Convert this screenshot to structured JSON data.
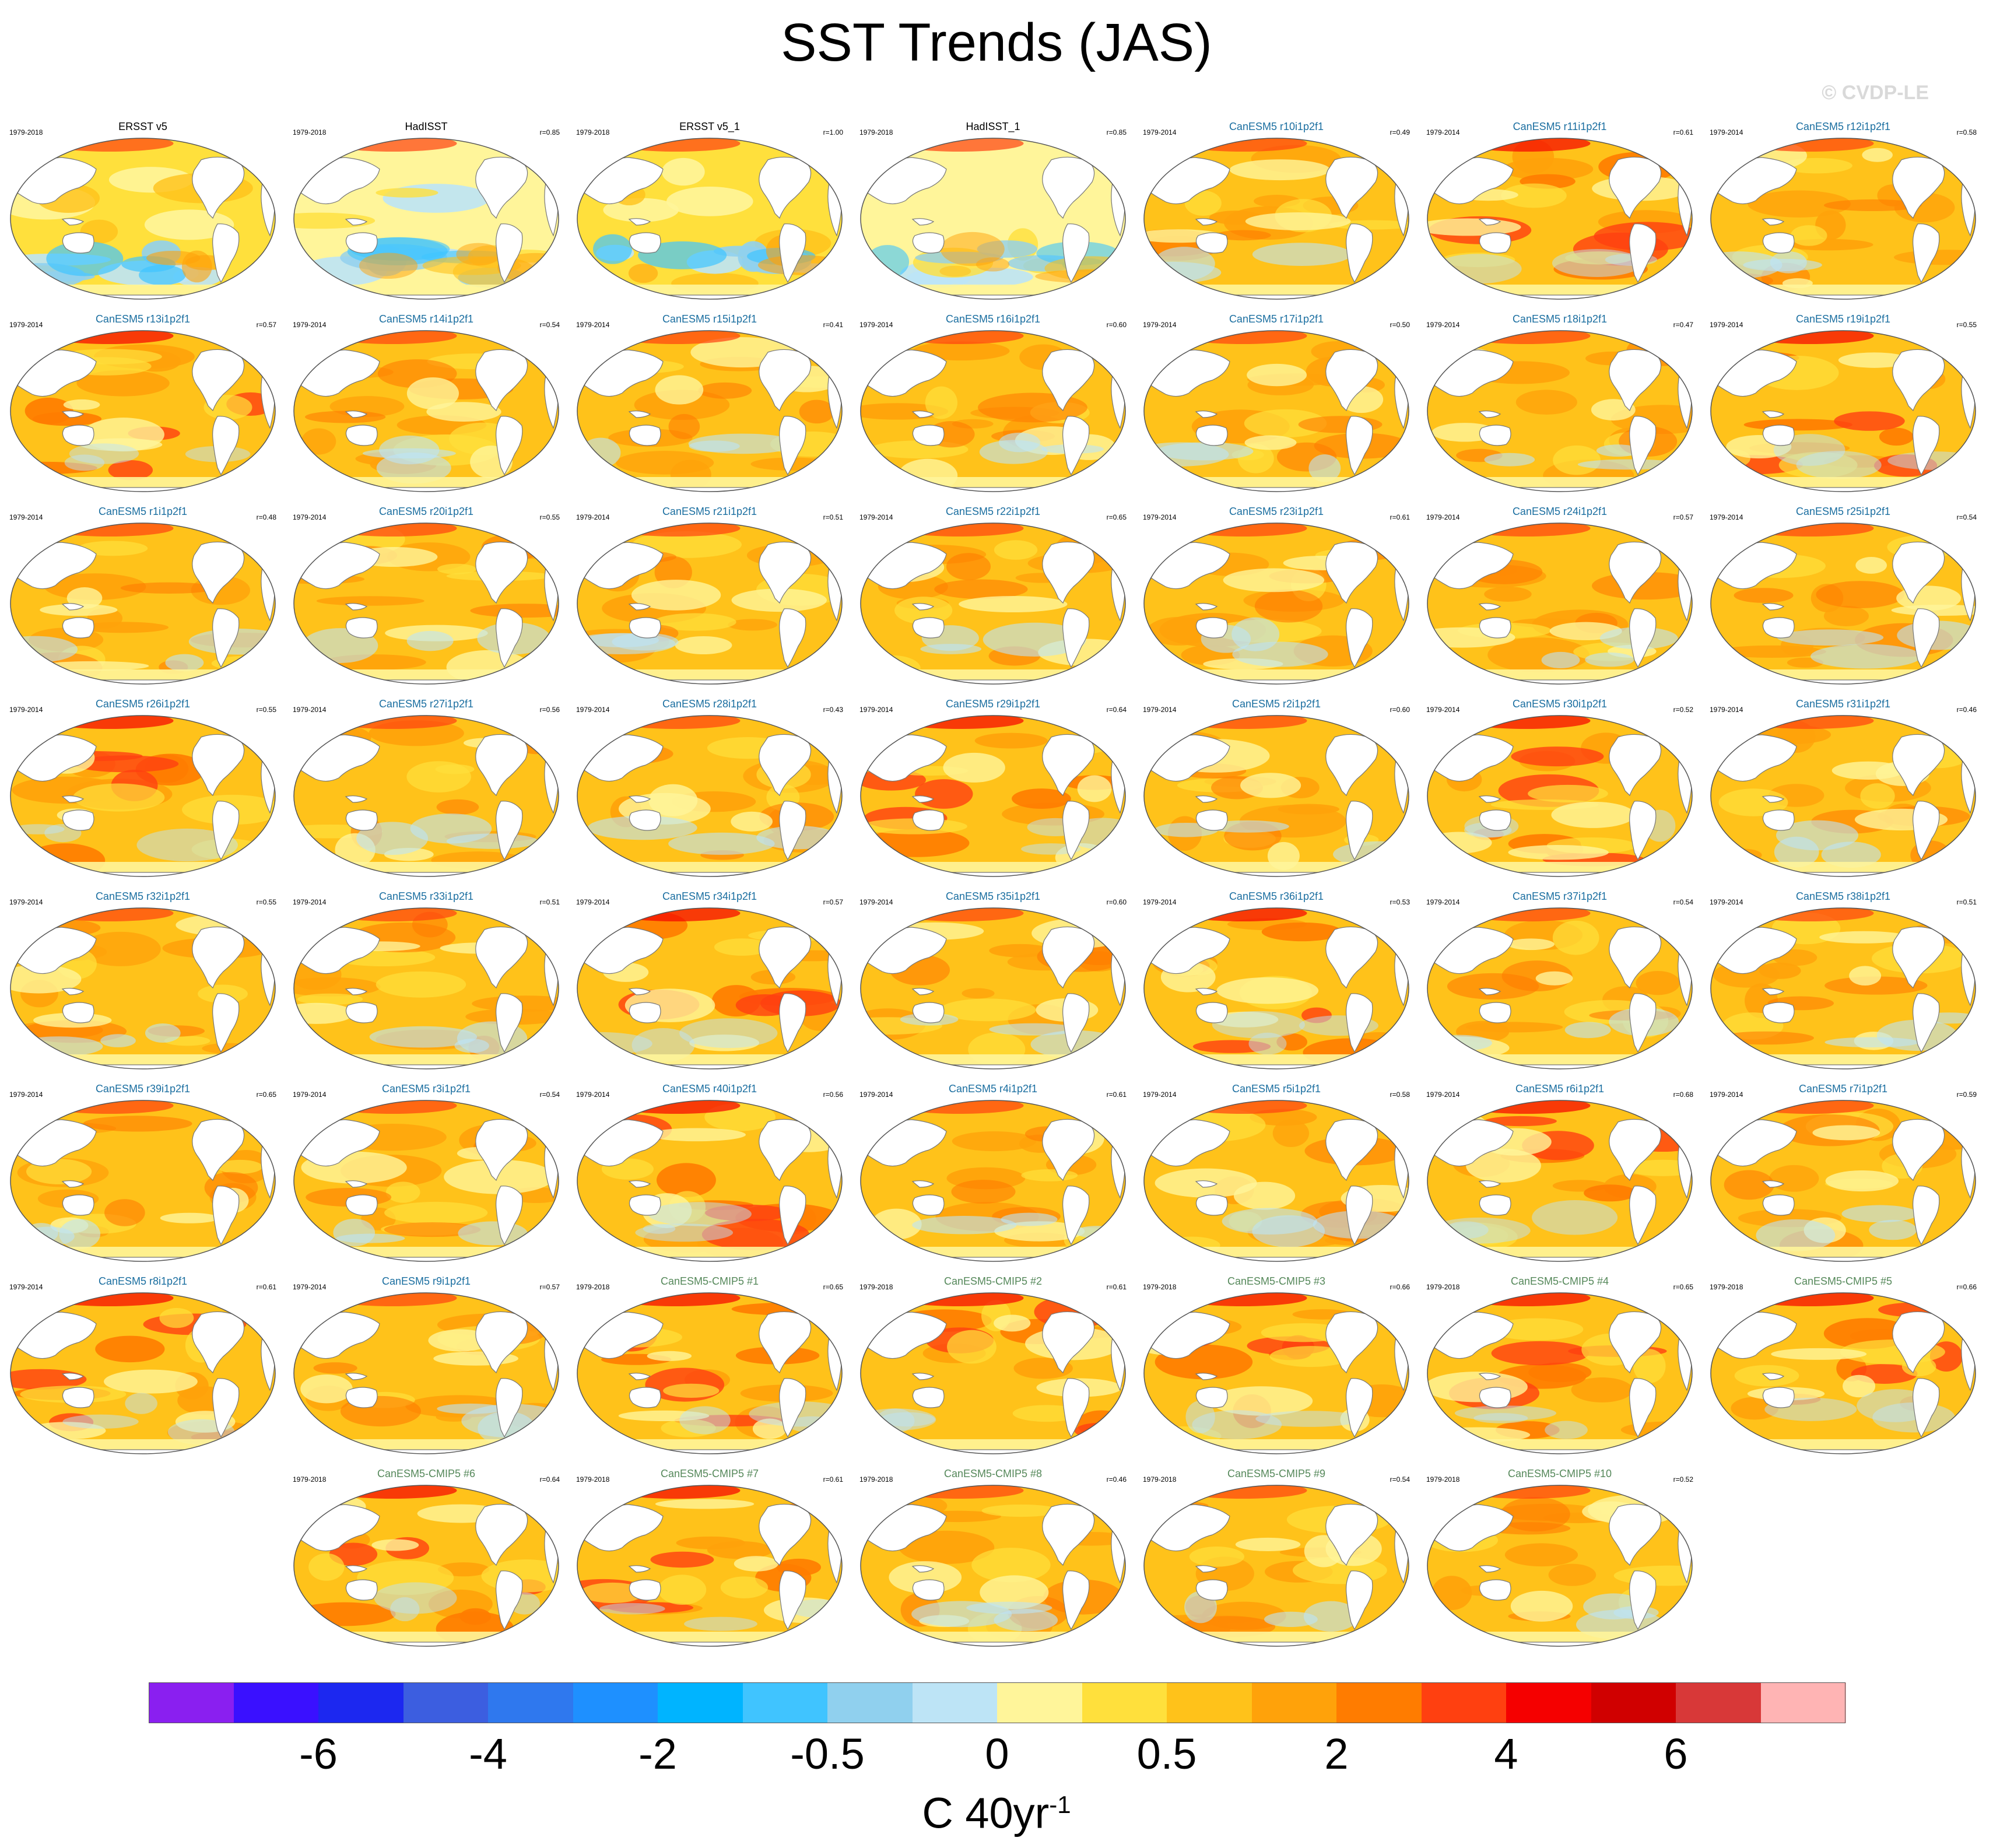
{
  "title": "SST Trends (JAS)",
  "watermark": "© CVDP-LE",
  "colors": {
    "obs_title": "#000000",
    "model_title": "#1a6ea0",
    "cmip5_title": "#55885a",
    "land": "#ffffff",
    "coast": "#666666"
  },
  "panels": [
    {
      "title": "ERSST v5",
      "period": "1979-2018",
      "r": "",
      "kind": "obs",
      "style": "coolobs"
    },
    {
      "title": "HadISST",
      "period": "1979-2018",
      "r": "r=0.85",
      "kind": "obs",
      "style": "coolobs2"
    },
    {
      "title": "ERSST v5_1",
      "period": "1979-2018",
      "r": "r=1.00",
      "kind": "obs",
      "style": "coolobs"
    },
    {
      "title": "HadISST_1",
      "period": "1979-2018",
      "r": "r=0.85",
      "kind": "obs",
      "style": "coolobs2"
    },
    {
      "title": "CanESM5 r10i1p2f1",
      "period": "1979-2014",
      "r": "r=0.49",
      "kind": "model",
      "style": "warm"
    },
    {
      "title": "CanESM5 r11i1p2f1",
      "period": "1979-2014",
      "r": "r=0.61",
      "kind": "model",
      "style": "hot"
    },
    {
      "title": "CanESM5 r12i1p2f1",
      "period": "1979-2014",
      "r": "r=0.58",
      "kind": "model",
      "style": "warm"
    },
    {
      "title": "CanESM5 r13i1p2f1",
      "period": "1979-2014",
      "r": "r=0.57",
      "kind": "model",
      "style": "hot"
    },
    {
      "title": "CanESM5 r14i1p2f1",
      "period": "1979-2014",
      "r": "r=0.54",
      "kind": "model",
      "style": "warm"
    },
    {
      "title": "CanESM5 r15i1p2f1",
      "period": "1979-2014",
      "r": "r=0.41",
      "kind": "model",
      "style": "warm"
    },
    {
      "title": "CanESM5 r16i1p2f1",
      "period": "1979-2014",
      "r": "r=0.60",
      "kind": "model",
      "style": "warm"
    },
    {
      "title": "CanESM5 r17i1p2f1",
      "period": "1979-2014",
      "r": "r=0.50",
      "kind": "model",
      "style": "warm"
    },
    {
      "title": "CanESM5 r18i1p2f1",
      "period": "1979-2014",
      "r": "r=0.47",
      "kind": "model",
      "style": "warm"
    },
    {
      "title": "CanESM5 r19i1p2f1",
      "period": "1979-2014",
      "r": "r=0.55",
      "kind": "model",
      "style": "hot"
    },
    {
      "title": "CanESM5 r1i1p2f1",
      "period": "1979-2014",
      "r": "r=0.48",
      "kind": "model",
      "style": "warm"
    },
    {
      "title": "CanESM5 r20i1p2f1",
      "period": "1979-2014",
      "r": "r=0.55",
      "kind": "model",
      "style": "warm"
    },
    {
      "title": "CanESM5 r21i1p2f1",
      "period": "1979-2014",
      "r": "r=0.51",
      "kind": "model",
      "style": "warm"
    },
    {
      "title": "CanESM5 r22i1p2f1",
      "period": "1979-2014",
      "r": "r=0.65",
      "kind": "model",
      "style": "warm"
    },
    {
      "title": "CanESM5 r23i1p2f1",
      "period": "1979-2014",
      "r": "r=0.61",
      "kind": "model",
      "style": "warm"
    },
    {
      "title": "CanESM5 r24i1p2f1",
      "period": "1979-2014",
      "r": "r=0.57",
      "kind": "model",
      "style": "warm"
    },
    {
      "title": "CanESM5 r25i1p2f1",
      "period": "1979-2014",
      "r": "r=0.54",
      "kind": "model",
      "style": "warm"
    },
    {
      "title": "CanESM5 r26i1p2f1",
      "period": "1979-2014",
      "r": "r=0.55",
      "kind": "model",
      "style": "hot"
    },
    {
      "title": "CanESM5 r27i1p2f1",
      "period": "1979-2014",
      "r": "r=0.56",
      "kind": "model",
      "style": "warm"
    },
    {
      "title": "CanESM5 r28i1p2f1",
      "period": "1979-2014",
      "r": "r=0.43",
      "kind": "model",
      "style": "warm"
    },
    {
      "title": "CanESM5 r29i1p2f1",
      "period": "1979-2014",
      "r": "r=0.64",
      "kind": "model",
      "style": "hot"
    },
    {
      "title": "CanESM5 r2i1p2f1",
      "period": "1979-2014",
      "r": "r=0.60",
      "kind": "model",
      "style": "warm"
    },
    {
      "title": "CanESM5 r30i1p2f1",
      "period": "1979-2014",
      "r": "r=0.52",
      "kind": "model",
      "style": "hot"
    },
    {
      "title": "CanESM5 r31i1p2f1",
      "period": "1979-2014",
      "r": "r=0.46",
      "kind": "model",
      "style": "warm"
    },
    {
      "title": "CanESM5 r32i1p2f1",
      "period": "1979-2014",
      "r": "r=0.55",
      "kind": "model",
      "style": "warm"
    },
    {
      "title": "CanESM5 r33i1p2f1",
      "period": "1979-2014",
      "r": "r=0.51",
      "kind": "model",
      "style": "warm"
    },
    {
      "title": "CanESM5 r34i1p2f1",
      "period": "1979-2014",
      "r": "r=0.57",
      "kind": "model",
      "style": "hot"
    },
    {
      "title": "CanESM5 r35i1p2f1",
      "period": "1979-2014",
      "r": "r=0.60",
      "kind": "model",
      "style": "warm"
    },
    {
      "title": "CanESM5 r36i1p2f1",
      "period": "1979-2014",
      "r": "r=0.53",
      "kind": "model",
      "style": "hot"
    },
    {
      "title": "CanESM5 r37i1p2f1",
      "period": "1979-2014",
      "r": "r=0.54",
      "kind": "model",
      "style": "warm"
    },
    {
      "title": "CanESM5 r38i1p2f1",
      "period": "1979-2014",
      "r": "r=0.51",
      "kind": "model",
      "style": "warm"
    },
    {
      "title": "CanESM5 r39i1p2f1",
      "period": "1979-2014",
      "r": "r=0.65",
      "kind": "model",
      "style": "warm"
    },
    {
      "title": "CanESM5 r3i1p2f1",
      "period": "1979-2014",
      "r": "r=0.54",
      "kind": "model",
      "style": "warm"
    },
    {
      "title": "CanESM5 r40i1p2f1",
      "period": "1979-2014",
      "r": "r=0.56",
      "kind": "model",
      "style": "hot"
    },
    {
      "title": "CanESM5 r4i1p2f1",
      "period": "1979-2014",
      "r": "r=0.61",
      "kind": "model",
      "style": "warm"
    },
    {
      "title": "CanESM5 r5i1p2f1",
      "period": "1979-2014",
      "r": "r=0.58",
      "kind": "model",
      "style": "warm"
    },
    {
      "title": "CanESM5 r6i1p2f1",
      "period": "1979-2014",
      "r": "r=0.68",
      "kind": "model",
      "style": "hot"
    },
    {
      "title": "CanESM5 r7i1p2f1",
      "period": "1979-2014",
      "r": "r=0.59",
      "kind": "model",
      "style": "warm"
    },
    {
      "title": "CanESM5 r8i1p2f1",
      "period": "1979-2014",
      "r": "r=0.61",
      "kind": "model",
      "style": "hot"
    },
    {
      "title": "CanESM5 r9i1p2f1",
      "period": "1979-2014",
      "r": "r=0.57",
      "kind": "model",
      "style": "warm"
    },
    {
      "title": "CanESM5-CMIP5 #1",
      "period": "1979-2018",
      "r": "r=0.65",
      "kind": "cmip5",
      "style": "hot"
    },
    {
      "title": "CanESM5-CMIP5 #2",
      "period": "1979-2018",
      "r": "r=0.61",
      "kind": "cmip5",
      "style": "hot"
    },
    {
      "title": "CanESM5-CMIP5 #3",
      "period": "1979-2018",
      "r": "r=0.66",
      "kind": "cmip5",
      "style": "hot"
    },
    {
      "title": "CanESM5-CMIP5 #4",
      "period": "1979-2018",
      "r": "r=0.65",
      "kind": "cmip5",
      "style": "hot"
    },
    {
      "title": "CanESM5-CMIP5 #5",
      "period": "1979-2018",
      "r": "r=0.66",
      "kind": "cmip5",
      "style": "hot"
    },
    {
      "title": "CanESM5-CMIP5 #6",
      "period": "1979-2018",
      "r": "r=0.64",
      "kind": "cmip5",
      "style": "hot"
    },
    {
      "title": "CanESM5-CMIP5 #7",
      "period": "1979-2018",
      "r": "r=0.61",
      "kind": "cmip5",
      "style": "hot"
    },
    {
      "title": "CanESM5-CMIP5 #8",
      "period": "1979-2018",
      "r": "r=0.46",
      "kind": "cmip5",
      "style": "warm"
    },
    {
      "title": "CanESM5-CMIP5 #9",
      "period": "1979-2018",
      "r": "r=0.54",
      "kind": "cmip5",
      "style": "warm"
    },
    {
      "title": "CanESM5-CMIP5 #10",
      "period": "1979-2018",
      "r": "r=0.52",
      "kind": "cmip5",
      "style": "warm"
    }
  ],
  "colorbar": {
    "colors": [
      "#8a1ff0",
      "#3a10ff",
      "#1c28f0",
      "#3c5ee0",
      "#2f78ee",
      "#1e90ff",
      "#00b4ff",
      "#40c4ff",
      "#90d0ee",
      "#bde4f6",
      "#fff59a",
      "#ffe03c",
      "#ffc21a",
      "#ffa20a",
      "#ff7c00",
      "#ff4010",
      "#f50000",
      "#d00000",
      "#d83838",
      "#ffb4b4"
    ],
    "tick_labels": [
      "-6",
      "-4",
      "-2",
      "-0.5",
      "0",
      "0.5",
      "2",
      "4",
      "6"
    ],
    "units_base": "C 40yr",
    "units_exp": "-1"
  }
}
